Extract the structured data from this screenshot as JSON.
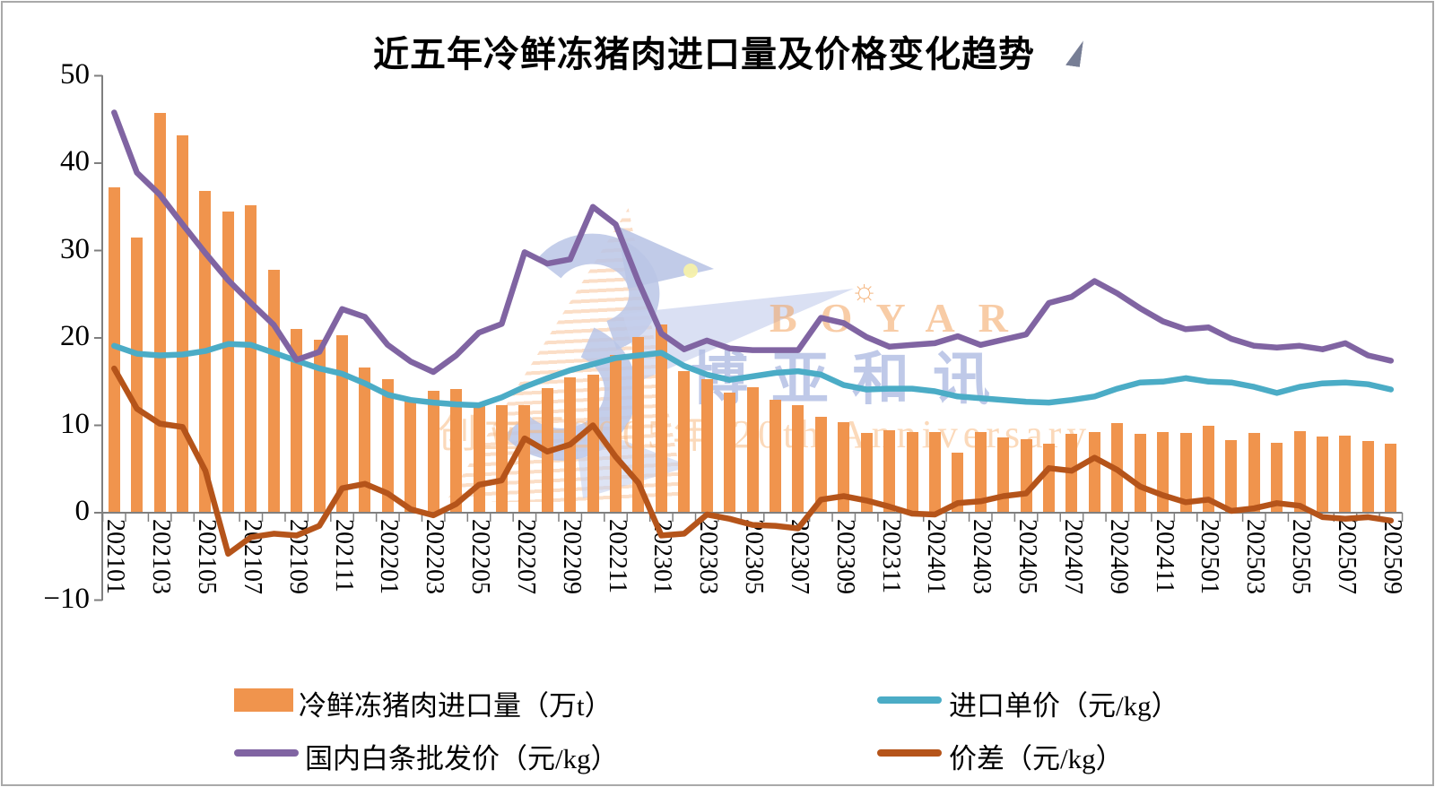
{
  "chart_data": {
    "type": "combo",
    "title": "近五年冷鲜冻猪肉进口量及价格变化趋势",
    "xlabel": "",
    "ylabel": "",
    "grid": false,
    "legend_position": "bottom",
    "ylim": [
      -10,
      50
    ],
    "y_ticks": [
      50,
      40,
      30,
      20,
      10,
      0,
      -10
    ],
    "categories": [
      "202101",
      "202102",
      "202103",
      "202104",
      "202105",
      "202106",
      "202107",
      "202108",
      "202109",
      "202110",
      "202111",
      "202112",
      "202201",
      "202202",
      "202203",
      "202204",
      "202205",
      "202206",
      "202207",
      "202208",
      "202209",
      "202210",
      "202211",
      "202212",
      "202301",
      "202302",
      "202303",
      "202304",
      "202305",
      "202306",
      "202307",
      "202308",
      "202309",
      "202310",
      "202311",
      "202312",
      "202401",
      "202402",
      "202403",
      "202404",
      "202405",
      "202406",
      "202407",
      "202408",
      "202409",
      "202410",
      "202411",
      "202412",
      "202501",
      "202502",
      "202503",
      "202504",
      "202505",
      "202506",
      "202507",
      "202508",
      "202509"
    ],
    "x_tick_labels": [
      "202101",
      "202103",
      "202105",
      "202107",
      "202109",
      "202111",
      "202201",
      "202203",
      "202205",
      "202207",
      "202209",
      "202211",
      "202301",
      "202303",
      "202305",
      "202307",
      "202309",
      "202311",
      "202401",
      "202403",
      "202405",
      "202407",
      "202409",
      "202411",
      "202501",
      "202503",
      "202505",
      "202507",
      "202509"
    ],
    "series": [
      {
        "key": "imports",
        "name": "冷鲜冻猪肉进口量（万t）",
        "type": "bar",
        "color": "#F0944D",
        "values": [
          37.2,
          31.5,
          45.7,
          43.2,
          36.8,
          34.5,
          35.2,
          27.8,
          21.0,
          19.8,
          20.3,
          16.6,
          15.3,
          12.8,
          13.9,
          14.2,
          12.4,
          12.3,
          12.3,
          14.3,
          15.5,
          15.8,
          18.1,
          20.1,
          21.5,
          16.2,
          15.3,
          13.7,
          14.4,
          12.9,
          12.3,
          11.0,
          10.4,
          9.1,
          9.4,
          9.2,
          9.2,
          6.9,
          9.2,
          8.6,
          8.4,
          7.9,
          9.0,
          9.2,
          10.3,
          9.0,
          9.2,
          9.1,
          10.0,
          8.3,
          9.1,
          8.0,
          9.3,
          8.7,
          8.8,
          8.2,
          7.9
        ]
      },
      {
        "key": "import_price",
        "name": "进口单价（元/kg）",
        "type": "line",
        "color": "#4BACC6",
        "values": [
          19.1,
          18.2,
          18.0,
          18.1,
          18.5,
          19.3,
          19.2,
          18.3,
          17.4,
          16.5,
          15.9,
          14.8,
          13.5,
          12.9,
          12.6,
          12.4,
          12.3,
          13.2,
          14.4,
          15.4,
          16.3,
          17.0,
          17.7,
          18.0,
          18.3,
          16.8,
          15.8,
          15.2,
          15.6,
          16.0,
          16.2,
          15.8,
          14.6,
          14.1,
          14.2,
          14.2,
          13.9,
          13.3,
          13.1,
          12.9,
          12.7,
          12.6,
          12.9,
          13.3,
          14.2,
          14.9,
          15.0,
          15.4,
          15.0,
          14.9,
          14.4,
          13.7,
          14.4,
          14.8,
          14.9,
          14.7,
          14.1
        ]
      },
      {
        "key": "wholesale_price",
        "name": "国内白条批发价（元/kg）",
        "type": "line",
        "color": "#8064A2",
        "values": [
          45.8,
          38.9,
          36.4,
          33.0,
          29.7,
          26.6,
          24.0,
          21.5,
          17.5,
          18.4,
          23.3,
          22.4,
          19.2,
          17.3,
          16.1,
          18.0,
          20.6,
          21.6,
          29.8,
          28.5,
          29.0,
          35.0,
          33.0,
          26.4,
          20.5,
          18.7,
          19.7,
          18.8,
          18.6,
          18.6,
          18.6,
          22.3,
          21.7,
          20.1,
          19.0,
          19.2,
          19.4,
          20.2,
          19.2,
          19.8,
          20.4,
          24.0,
          24.7,
          26.5,
          25.1,
          23.4,
          21.9,
          21.0,
          21.2,
          19.9,
          19.1,
          18.9,
          19.1,
          18.7,
          19.4,
          18.0,
          17.4
        ]
      },
      {
        "key": "price_diff",
        "name": "价差（元/kg）",
        "type": "line",
        "color": "#B5541A",
        "values": [
          16.5,
          11.9,
          10.2,
          9.8,
          4.8,
          -4.7,
          -2.8,
          -2.4,
          -2.6,
          -1.5,
          2.8,
          3.3,
          2.2,
          0.4,
          -0.3,
          1.0,
          3.2,
          3.7,
          8.5,
          7.0,
          7.8,
          10.0,
          6.4,
          3.4,
          -2.6,
          -2.4,
          -0.2,
          -0.7,
          -1.4,
          -1.5,
          -1.8,
          1.5,
          1.9,
          1.4,
          0.7,
          -0.1,
          -0.2,
          1.1,
          1.3,
          1.9,
          2.2,
          5.1,
          4.8,
          6.3,
          4.9,
          3.0,
          2.0,
          1.2,
          1.5,
          0.2,
          0.5,
          1.1,
          0.8,
          -0.5,
          -0.7,
          -0.5,
          -0.9
        ]
      }
    ],
    "legend_entries": [
      "冷鲜冻猪肉进口量（万t）",
      "进口单价（元/kg）",
      "国内白条批发价（元/kg）",
      "价差（元/kg）"
    ]
  },
  "watermark": {
    "boyar": "BOYAR",
    "gear": "☼",
    "brand_cn": "博亚和讯",
    "anniversary": "创立于2005年 20th Anniversary"
  },
  "colors": {
    "bar": "#F0944D",
    "import_price_line": "#4BACC6",
    "wholesale_line": "#8064A2",
    "price_diff_line": "#B5541A",
    "axis": "#7F7F7F"
  }
}
